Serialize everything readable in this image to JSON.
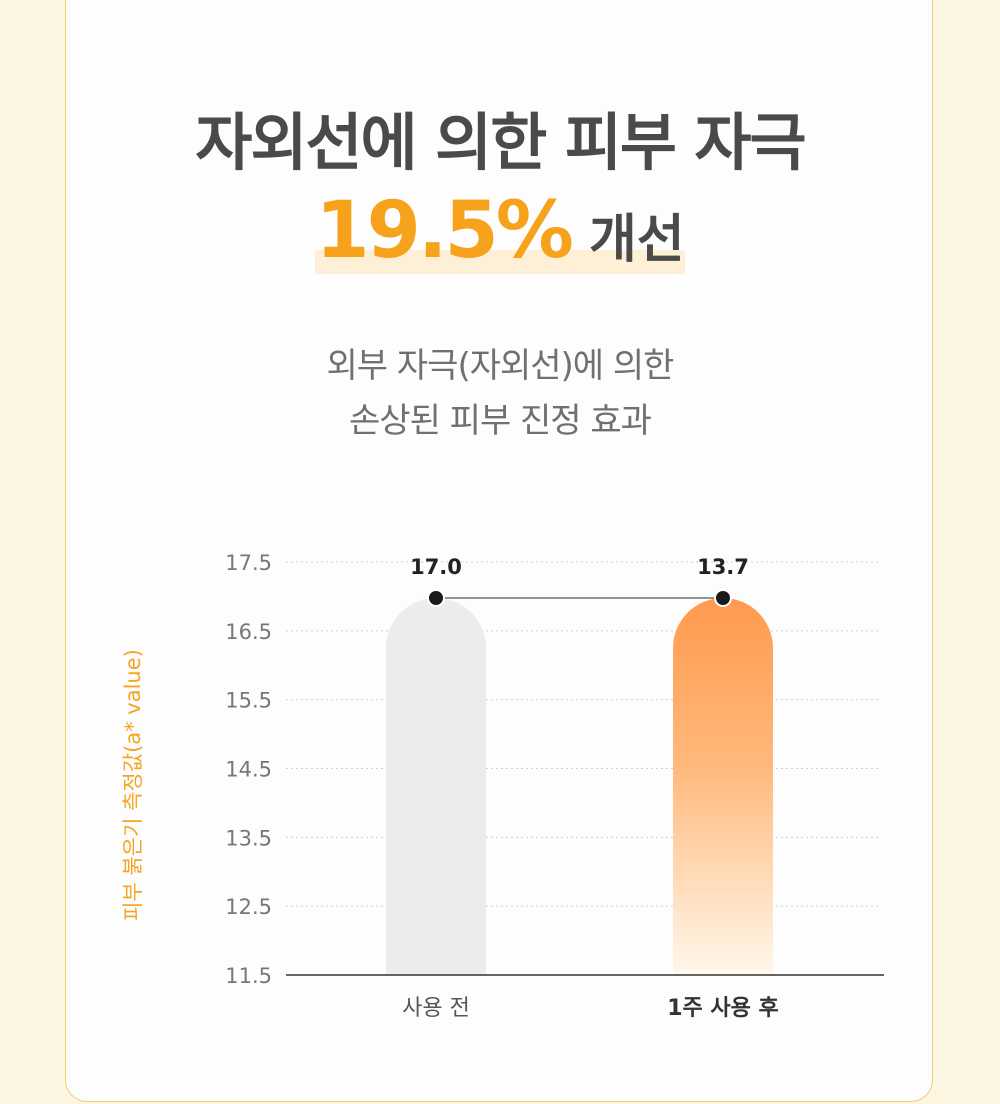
{
  "header": {
    "title": "자외선에 의한 피부 자극",
    "highlight_value": "19.5%",
    "highlight_word": "개선"
  },
  "subtitle": {
    "line1": "외부 자극(자외선)에 의한",
    "line2": "손상된 피부 진정 효과"
  },
  "colors": {
    "accent": "#f7a21b",
    "bar_after": "#ff9a4e",
    "bar_before": "#ececec",
    "text_dark": "#4a4a4a"
  },
  "chart_data": {
    "type": "bar",
    "categories": [
      "사용 전",
      "1주 사용 후"
    ],
    "values": [
      17.0,
      13.7
    ],
    "value_labels": [
      "17.0",
      "13.7"
    ],
    "ylabel": "피부 붉은기 측정값(a* value)",
    "ylim": [
      11.5,
      17.5
    ],
    "yticks": [
      "17.5",
      "16.5",
      "15.5",
      "14.5",
      "13.5",
      "12.5",
      "11.5"
    ],
    "grid": true
  }
}
